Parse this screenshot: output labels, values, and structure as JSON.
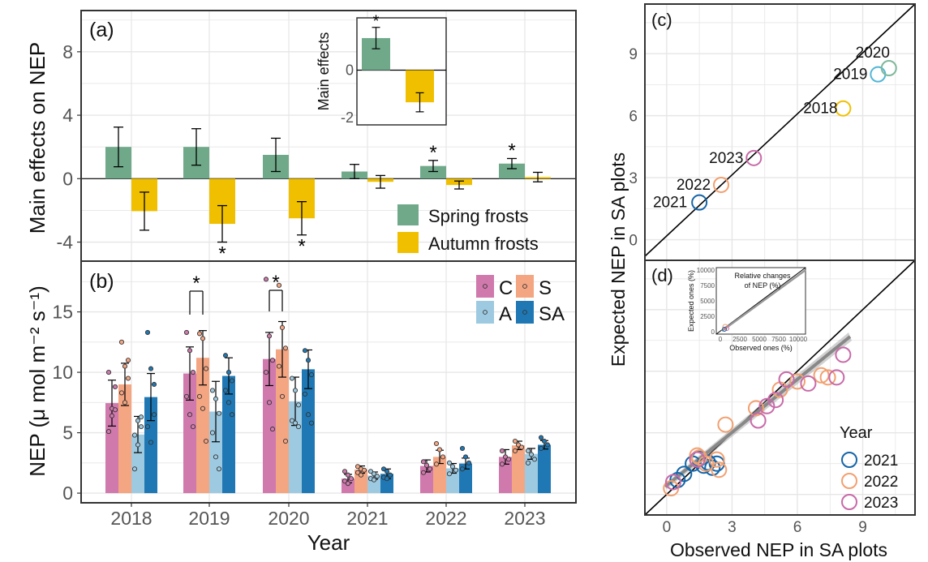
{
  "colors": {
    "spring": "#6fa98a",
    "autumn": "#f0c000",
    "C": "#d079ad",
    "S": "#f4a582",
    "A": "#9ecae1",
    "SA": "#1f78b4",
    "y2018": "#f0c000",
    "y2019": "#52b6d6",
    "y2020": "#7fb89a",
    "y2021": "#1565a7",
    "y2022": "#f2a070",
    "y2023": "#c86aa8",
    "grid": "#e6e6e6",
    "frame": "#333333"
  },
  "chart_data": [
    {
      "id": "a",
      "type": "bar",
      "panel_label": "(a)",
      "ylabel": "Main effects on NEP",
      "ylim": [
        -5.2,
        10.6
      ],
      "yticks": [
        "-4",
        "0",
        "4",
        "8"
      ],
      "categories": [
        "2018",
        "2019",
        "2020",
        "2021",
        "2022",
        "2023"
      ],
      "series": [
        {
          "name": "Spring frosts",
          "values": [
            2.0,
            2.0,
            1.5,
            0.45,
            0.8,
            0.95
          ],
          "err": [
            1.25,
            1.15,
            1.05,
            0.45,
            0.35,
            0.32
          ],
          "sig": [
            false,
            false,
            false,
            false,
            true,
            true
          ]
        },
        {
          "name": "Autumn frosts",
          "values": [
            -2.05,
            -2.85,
            -2.5,
            -0.2,
            -0.4,
            0.1
          ],
          "err": [
            1.2,
            1.15,
            1.05,
            0.4,
            0.25,
            0.3
          ],
          "sig": [
            false,
            true,
            true,
            false,
            false,
            false
          ]
        }
      ],
      "sig_marker": "*",
      "legend_position": "bottom-right",
      "inset": {
        "type": "bar",
        "ylabel": "Main effects",
        "yticks": [
          "-2",
          "0"
        ],
        "ylim": [
          -2.3,
          2.2
        ],
        "values": [
          1.35,
          -1.35
        ],
        "err": [
          0.45,
          0.4
        ],
        "sig": [
          true,
          false
        ]
      }
    },
    {
      "id": "b",
      "type": "bar",
      "panel_label": "(b)",
      "ylabel": "NEP (μ mol m⁻² s⁻¹)",
      "xlabel": "Year",
      "ylim": [
        -0.8,
        19.2
      ],
      "yticks": [
        "0",
        "5",
        "10",
        "15"
      ],
      "categories": [
        "2018",
        "2019",
        "2020",
        "2021",
        "2022",
        "2023"
      ],
      "series": [
        {
          "name": "C",
          "values": [
            7.45,
            9.9,
            11.1,
            1.2,
            2.25,
            3.0
          ],
          "err": [
            1.9,
            2.2,
            2.2,
            0.35,
            0.5,
            0.6
          ]
        },
        {
          "name": "S",
          "values": [
            9.0,
            11.2,
            11.9,
            1.95,
            3.0,
            3.95
          ],
          "err": [
            1.75,
            2.25,
            2.3,
            0.3,
            0.55,
            0.35
          ]
        },
        {
          "name": "A",
          "values": [
            4.85,
            6.75,
            7.6,
            1.45,
            2.05,
            3.25
          ],
          "err": [
            1.5,
            2.5,
            2.0,
            0.3,
            0.4,
            0.45
          ]
        },
        {
          "name": "SA",
          "values": [
            7.95,
            9.7,
            10.25,
            1.6,
            2.45,
            4.0
          ],
          "err": [
            1.95,
            1.5,
            1.6,
            0.4,
            0.45,
            0.35
          ]
        }
      ],
      "points": [
        [
          [
            5.1,
            6.4,
            8.8,
            10.0,
            7.0,
            6.9
          ],
          [
            12.5,
            10.5,
            9.5,
            8.3,
            7.5,
            11.0
          ],
          [
            4.8,
            4.0,
            6.3,
            2.0,
            6.0,
            5.5
          ],
          [
            13.3,
            10.3,
            9.0,
            5.5,
            4.2,
            6.5
          ]
        ],
        [
          [
            13.3,
            11.8,
            10.0,
            8.0,
            6.5,
            5.5
          ],
          [
            13.2,
            12.8,
            10.3,
            8.0,
            7.0,
            4.3
          ],
          [
            8.5,
            7.8,
            6.6,
            5.0,
            3.0,
            2.0
          ],
          [
            11.4,
            10.0,
            9.3,
            8.5,
            7.5,
            6.5
          ]
        ],
        [
          [
            17.7,
            13.0,
            11.0,
            10.0,
            7.5,
            5.3
          ],
          [
            17.2,
            13.7,
            12.0,
            10.5,
            8.0,
            4.3
          ],
          [
            9.5,
            8.5,
            7.3,
            6.0,
            5.8,
            5.5
          ],
          [
            11.8,
            11.0,
            9.8,
            8.2,
            6.5,
            5.8
          ]
        ],
        [
          [
            1.8,
            1.5,
            1.2,
            1.0,
            0.8
          ],
          [
            2.2,
            2.0,
            1.9,
            1.7,
            1.5
          ],
          [
            1.8,
            1.6,
            1.4,
            1.2,
            1.1
          ],
          [
            2.0,
            1.8,
            1.5,
            1.3,
            1.2
          ]
        ],
        [
          [
            2.6,
            2.3,
            2.0,
            1.7
          ],
          [
            4.1,
            3.6,
            3.0,
            2.4
          ],
          [
            2.5,
            2.2,
            1.9,
            1.6
          ],
          [
            3.7,
            3.0,
            2.5,
            2.0
          ]
        ],
        [
          [
            3.5,
            3.0,
            2.8,
            2.4
          ],
          [
            4.3,
            4.0,
            3.8,
            3.5
          ],
          [
            3.5,
            3.2,
            2.8,
            2.5
          ],
          [
            4.6,
            4.3,
            4.0,
            3.7
          ]
        ]
      ],
      "sig_markers": [
        "*",
        "*"
      ],
      "legend_position": "top-right"
    },
    {
      "id": "c",
      "type": "scatter",
      "panel_label": "(c)",
      "ylim": [
        -1.0,
        11.4
      ],
      "yticks": [
        "0",
        "3",
        "6",
        "9"
      ],
      "points": [
        {
          "label": "2018",
          "x": 8.1,
          "y": 6.35
        },
        {
          "label": "2019",
          "x": 9.7,
          "y": 8.0
        },
        {
          "label": "2020",
          "x": 10.2,
          "y": 8.3
        },
        {
          "label": "2021",
          "x": 1.5,
          "y": 1.8
        },
        {
          "label": "2022",
          "x": 2.5,
          "y": 2.65
        },
        {
          "label": "2023",
          "x": 4.0,
          "y": 3.95
        }
      ],
      "reference_line": "1:1"
    },
    {
      "id": "d",
      "type": "scatter",
      "panel_label": "(d)",
      "xlabel": "Observed NEP in SA plots",
      "ylabel": "Expected NEP in SA plots",
      "xlim": [
        -1.0,
        11.4
      ],
      "xticks": [
        "0",
        "3",
        "6",
        "9"
      ],
      "series": [
        {
          "name": "2021",
          "x": [
            0.5,
            0.8,
            1.2,
            1.5,
            1.7,
            1.9,
            2.1,
            2.3
          ],
          "y": [
            0.7,
            1.0,
            1.5,
            1.75,
            1.4,
            1.55,
            1.3,
            1.5
          ]
        },
        {
          "name": "2022",
          "x": [
            0.2,
            1.5,
            1.8,
            2.4,
            2.7,
            4.1,
            5.2,
            6.0,
            7.1,
            7.4,
            2.3,
            1.4
          ],
          "y": [
            0.3,
            1.8,
            1.5,
            1.2,
            3.4,
            4.2,
            5.1,
            5.5,
            5.8,
            5.7,
            1.7,
            1.9
          ]
        },
        {
          "name": "2023",
          "x": [
            0.3,
            1.4,
            4.2,
            4.6,
            5.0,
            5.5,
            6.5,
            7.8,
            8.1
          ],
          "y": [
            0.6,
            1.7,
            3.6,
            4.3,
            4.6,
            5.6,
            5.4,
            5.7,
            6.8
          ]
        }
      ],
      "legend_title": "Year",
      "legend_position": "bottom-right",
      "reference_line": "1:1",
      "inset": {
        "title": "Relative changes of NEP (%)",
        "xlabel": "Observed ones (%)",
        "ylabel": "Expected ones (%)",
        "xticks": [
          "0",
          "2500",
          "5000",
          "7500",
          "10000"
        ],
        "yticks": [
          "0",
          "2500",
          "5000",
          "7500",
          "10000"
        ]
      }
    }
  ]
}
